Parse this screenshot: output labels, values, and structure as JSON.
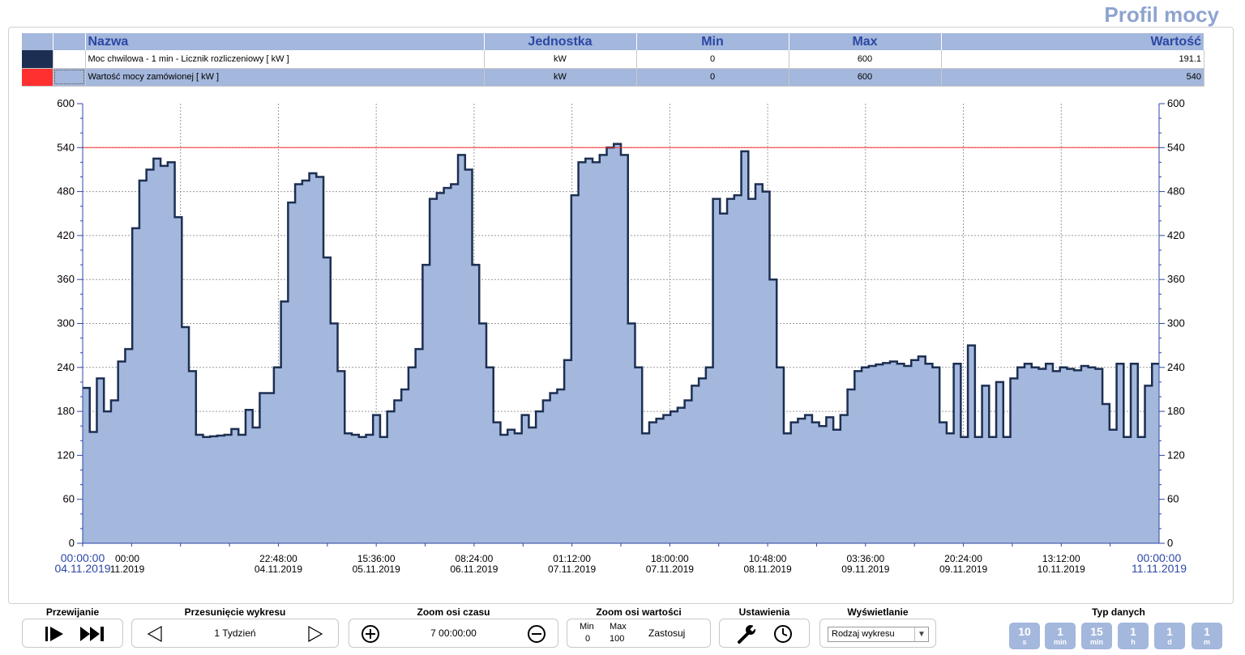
{
  "title": "Profil mocy",
  "legend": {
    "headers": [
      "Nazwa",
      "Jednostka",
      "Min",
      "Max",
      "Wartość"
    ],
    "rows": [
      {
        "color": "#1c2f52",
        "name": "Moc chwilowa - 1 min - Licznik rozliczeniowy [ kW ]",
        "unit": "kW",
        "min": "0",
        "max": "600",
        "value": "191.1"
      },
      {
        "color": "#ff3030",
        "name": "Wartość mocy zamówionej [ kW ]",
        "unit": "kW",
        "min": "0",
        "max": "600",
        "value": "540"
      }
    ]
  },
  "chart_data": {
    "type": "area",
    "ylim": [
      0,
      600
    ],
    "yticks": [
      0,
      60,
      120,
      180,
      240,
      300,
      360,
      420,
      480,
      540,
      600
    ],
    "x_tick_labels": [
      {
        "time": "00:00:00",
        "date": "04.11.2019"
      },
      {
        "time": "00:00",
        "date": "11.2019"
      },
      {
        "time": "22:48:00",
        "date": "04.11.2019"
      },
      {
        "time": "15:36:00",
        "date": "05.11.2019"
      },
      {
        "time": "08:24:00",
        "date": "06.11.2019"
      },
      {
        "time": "01:12:00",
        "date": "07.11.2019"
      },
      {
        "time": "18:00:00",
        "date": "07.11.2019"
      },
      {
        "time": "10:48:00",
        "date": "08.11.2019"
      },
      {
        "time": "03:36:00",
        "date": "09.11.2019"
      },
      {
        "time": "20:24:00",
        "date": "09.11.2019"
      },
      {
        "time": "13:12:00",
        "date": "10.11.2019"
      },
      {
        "time": "00:00:00",
        "date": "11.11.2019"
      }
    ],
    "threshold": 540,
    "series": [
      {
        "name": "Moc chwilowa - 1 min - Licznik rozliczeniowy [ kW ]",
        "color": "#1c2f52",
        "fill": "#a4b7dc",
        "values": [
          212,
          152,
          225,
          180,
          195,
          248,
          265,
          430,
          495,
          510,
          525,
          515,
          520,
          445,
          295,
          235,
          148,
          145,
          146,
          147,
          148,
          156,
          148,
          182,
          158,
          205,
          205,
          240,
          330,
          465,
          490,
          495,
          505,
          500,
          390,
          300,
          235,
          150,
          148,
          145,
          148,
          175,
          145,
          180,
          195,
          210,
          240,
          265,
          380,
          470,
          478,
          485,
          490,
          530,
          510,
          380,
          300,
          240,
          165,
          148,
          155,
          150,
          175,
          158,
          180,
          195,
          205,
          210,
          250,
          475,
          520,
          525,
          520,
          530,
          540,
          545,
          530,
          300,
          240,
          150,
          165,
          170,
          175,
          180,
          185,
          195,
          215,
          225,
          240,
          470,
          450,
          470,
          475,
          535,
          470,
          490,
          480,
          360,
          240,
          150,
          165,
          170,
          175,
          165,
          160,
          172,
          155,
          175,
          210,
          235,
          240,
          242,
          244,
          246,
          248,
          245,
          242,
          250,
          255,
          245,
          240,
          165,
          150,
          245,
          145,
          270,
          145,
          215,
          145,
          220,
          145,
          225,
          240,
          245,
          240,
          238,
          245,
          235,
          240,
          238,
          236,
          242,
          240,
          238,
          190,
          155,
          245,
          145,
          245,
          145,
          215,
          245
        ]
      }
    ]
  },
  "controls": {
    "przewijanie": {
      "title": "Przewijanie"
    },
    "przesuniecie": {
      "title": "Przesunięcie wykresu",
      "value": "1 Tydzień"
    },
    "zoom_czas": {
      "title": "Zoom osi czasu",
      "value": "7 00:00:00"
    },
    "zoom_wartosci": {
      "title": "Zoom osi wartości",
      "min_label": "Min",
      "min_value": "0",
      "max_label": "Max",
      "max_value": "100",
      "apply_label": "Zastosuj"
    },
    "ustawienia": {
      "title": "Ustawienia"
    },
    "wyswietlanie": {
      "title": "Wyświetlanie",
      "select_value": "Rodzaj wykresu"
    },
    "typ_danych": {
      "title": "Typ danych",
      "buttons": [
        {
          "n": "10",
          "u": "s"
        },
        {
          "n": "1",
          "u": "min"
        },
        {
          "n": "15",
          "u": "min"
        },
        {
          "n": "1",
          "u": "h"
        },
        {
          "n": "1",
          "u": "d"
        },
        {
          "n": "1",
          "u": "m"
        }
      ]
    }
  }
}
